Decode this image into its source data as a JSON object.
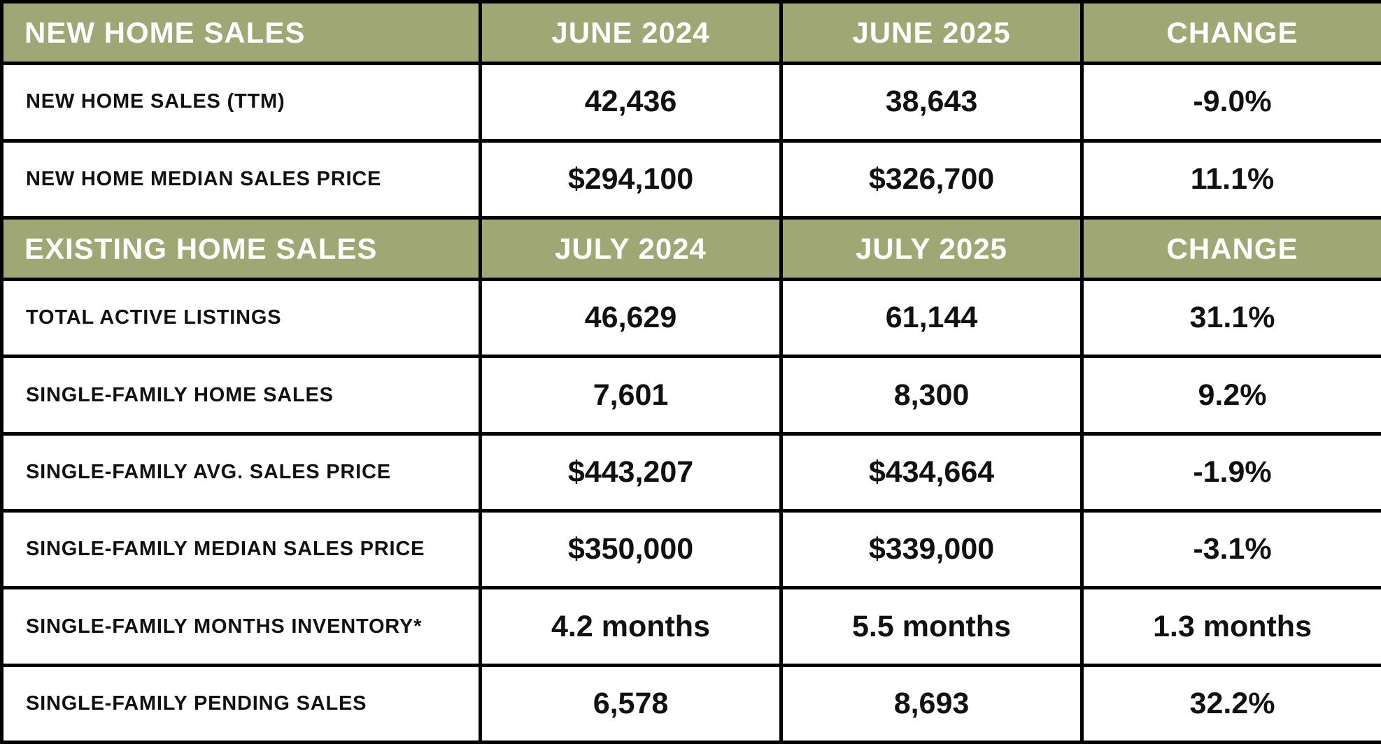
{
  "chart_data": {
    "type": "table",
    "header_color": "#9fa874",
    "sections": [
      {
        "header": [
          "NEW HOME SALES",
          "JUNE 2024",
          "JUNE 2025",
          "CHANGE"
        ],
        "rows": [
          [
            "NEW HOME SALES (TTM)",
            "42,436",
            "38,643",
            "-9.0%"
          ],
          [
            "NEW HOME MEDIAN SALES PRICE",
            "$294,100",
            "$326,700",
            "11.1%"
          ]
        ]
      },
      {
        "header": [
          "EXISTING HOME SALES",
          "JULY 2024",
          "JULY 2025",
          "CHANGE"
        ],
        "rows": [
          [
            "TOTAL ACTIVE LISTINGS",
            "46,629",
            "61,144",
            "31.1%"
          ],
          [
            "SINGLE-FAMILY HOME SALES",
            "7,601",
            "8,300",
            "9.2%"
          ],
          [
            "SINGLE-FAMILY AVG. SALES PRICE",
            "$443,207",
            "$434,664",
            "-1.9%"
          ],
          [
            "SINGLE-FAMILY MEDIAN SALES PRICE",
            "$350,000",
            "$339,000",
            "-3.1%"
          ],
          [
            "SINGLE-FAMILY MONTHS INVENTORY*",
            "4.2 months",
            "5.5 months",
            "1.3 months"
          ],
          [
            "SINGLE-FAMILY PENDING SALES",
            "6,578",
            "8,693",
            "32.2%"
          ]
        ]
      }
    ]
  }
}
